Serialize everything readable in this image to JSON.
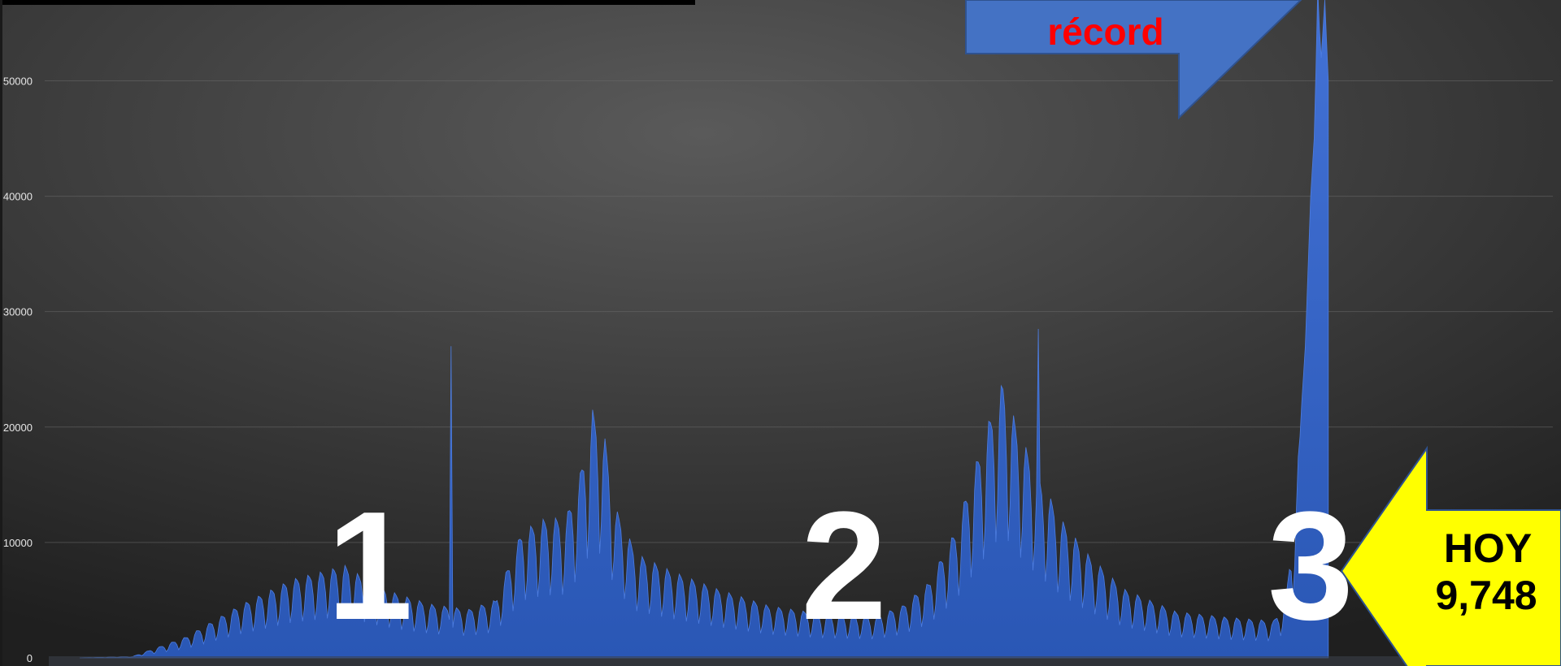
{
  "chart_data": {
    "type": "area",
    "title": "",
    "xlabel": "",
    "ylabel": "",
    "ylim": [
      0,
      57000
    ],
    "y_ticks": [
      "0",
      "10000",
      "20000",
      "30000",
      "40000",
      "50000"
    ],
    "y_tick_values": [
      0,
      10000,
      20000,
      30000,
      40000,
      50000
    ],
    "grid": true,
    "series_color": "#3a68c6",
    "wave_labels": [
      "1",
      "2",
      "3"
    ],
    "envelope": [
      [
        0,
        0
      ],
      [
        30,
        120
      ],
      [
        60,
        1800
      ],
      [
        90,
        4500
      ],
      [
        120,
        6800
      ],
      [
        150,
        8000
      ],
      [
        165,
        6500
      ],
      [
        180,
        5500
      ],
      [
        200,
        4600
      ],
      [
        220,
        4200
      ],
      [
        235,
        5000
      ],
      [
        240,
        7000
      ],
      [
        250,
        11000
      ],
      [
        262,
        12000
      ],
      [
        275,
        12200
      ],
      [
        283,
        16000
      ],
      [
        290,
        21500
      ],
      [
        297,
        19000
      ],
      [
        303,
        13000
      ],
      [
        315,
        9000
      ],
      [
        335,
        7500
      ],
      [
        360,
        6000
      ],
      [
        390,
        4500
      ],
      [
        420,
        3800
      ],
      [
        450,
        3600
      ],
      [
        465,
        4500
      ],
      [
        480,
        6500
      ],
      [
        495,
        11000
      ],
      [
        505,
        16000
      ],
      [
        515,
        21000
      ],
      [
        522,
        24000
      ],
      [
        530,
        20000
      ],
      [
        540,
        16500
      ],
      [
        555,
        12000
      ],
      [
        570,
        9000
      ],
      [
        590,
        6000
      ],
      [
        620,
        4000
      ],
      [
        650,
        3500
      ],
      [
        675,
        3200
      ],
      [
        682,
        5000
      ],
      [
        688,
        15000
      ],
      [
        693,
        27000
      ],
      [
        696,
        40000
      ],
      [
        698,
        45000
      ],
      [
        700,
        57000
      ],
      [
        702,
        52000
      ],
      [
        704,
        57000
      ],
      [
        706,
        50000
      ],
      [
        707,
        0
      ]
    ],
    "dips": [
      [
        235,
        4200
      ],
      [
        485,
        3800
      ],
      [
        480,
        4200
      ]
    ],
    "spikes": [
      [
        210,
        27000
      ],
      [
        542,
        28500
      ],
      [
        700,
        58000
      ]
    ],
    "n_days": 707
  },
  "annotations": {
    "record_callout": "récord",
    "today_callout_line1": "HOY",
    "today_callout_line2": "9,748"
  },
  "colors": {
    "background_center": "#575757",
    "background_edge": "#222222",
    "area_top": "#3f6fd0",
    "area_bottom": "#2c59b8",
    "callout_blue": "#4472c4",
    "callout_yellow": "#ffff00",
    "callout_text_red": "#ff0000",
    "grid": "#6a6a6a"
  }
}
